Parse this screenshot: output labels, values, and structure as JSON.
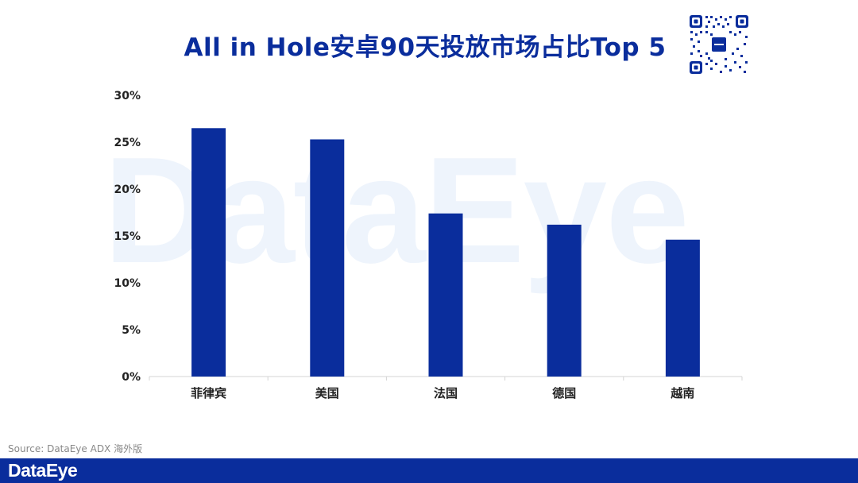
{
  "brand": {
    "accent_color": "#0a2d9c",
    "watermark_text": "DataEye",
    "footer_logo": "DataEye"
  },
  "source_text": "Source: DataEye ADX 海外版",
  "chart_data": {
    "type": "bar",
    "title": "All in Hole安卓90天投放市场占比Top 5",
    "categories": [
      "菲律宾",
      "美国",
      "法国",
      "德国",
      "越南"
    ],
    "values": [
      26.5,
      25.3,
      17.4,
      16.2,
      14.6
    ],
    "y_ticks": [
      "0%",
      "5%",
      "10%",
      "15%",
      "20%",
      "25%",
      "30%"
    ],
    "ylim": [
      0,
      30
    ],
    "unit": "%",
    "bar_color": "#0a2d9c",
    "grid": false,
    "legend": "none"
  }
}
